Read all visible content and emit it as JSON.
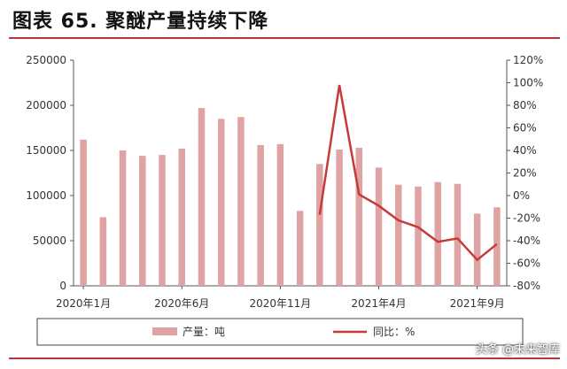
{
  "title": "图表 65. 聚醚产量持续下降",
  "watermark": "头条 @未来智库",
  "colors": {
    "bar": "#e0a3a3",
    "line": "#c63a3a",
    "rule": "#b23a3a"
  },
  "chart_data": {
    "type": "bar+line",
    "x": [
      "2020-01",
      "2020-02",
      "2020-03",
      "2020-04",
      "2020-05",
      "2020-06",
      "2020-07",
      "2020-08",
      "2020-09",
      "2020-10",
      "2020-11",
      "2020-12",
      "2021-01",
      "2021-02",
      "2021-03",
      "2021-04",
      "2021-05",
      "2021-06",
      "2021-07",
      "2021-08",
      "2021-09",
      "2021-10"
    ],
    "x_tick_labels": [
      "2020年1月",
      "2020年6月",
      "2020年11月",
      "2021年4月",
      "2021年9月"
    ],
    "x_tick_index": [
      0,
      5,
      10,
      15,
      20
    ],
    "y_left": {
      "min": 0,
      "max": 250000,
      "ticks": [
        "0",
        "50000",
        "100000",
        "150000",
        "200000",
        "250000"
      ]
    },
    "y_right": {
      "min": -80,
      "max": 120,
      "ticks": [
        "-80%",
        "-60%",
        "-40%",
        "-20%",
        "0%",
        "20%",
        "40%",
        "60%",
        "80%",
        "100%",
        "120%"
      ]
    },
    "series": [
      {
        "name": "产量：吨",
        "type": "bar",
        "axis": "left",
        "values": [
          162000,
          76000,
          150000,
          144000,
          145000,
          152000,
          197000,
          185000,
          187000,
          156000,
          157000,
          83000,
          135000,
          151000,
          153000,
          131000,
          112000,
          110000,
          115000,
          113000,
          80000,
          87000
        ]
      },
      {
        "name": "同比：%",
        "type": "line",
        "axis": "right",
        "values": [
          null,
          null,
          null,
          null,
          null,
          null,
          null,
          null,
          null,
          null,
          null,
          null,
          -17,
          98,
          1,
          -9,
          -22,
          -28,
          -41,
          -38,
          -57,
          -43
        ]
      }
    ],
    "legend": {
      "position": "bottom",
      "entries": [
        "产量：吨",
        "同比：%"
      ]
    },
    "grid": false
  }
}
